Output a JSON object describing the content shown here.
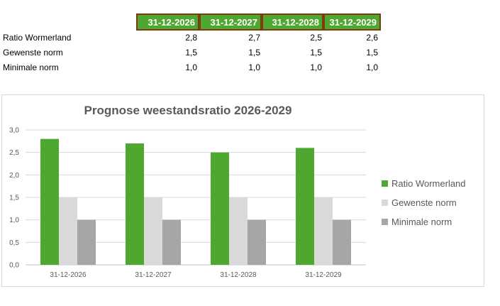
{
  "table": {
    "headers": [
      "31-12-2026",
      "31-12-2027",
      "31-12-2028",
      "31-12-2029"
    ],
    "rows": [
      {
        "label": "Ratio Wormerland",
        "values": [
          "2,8",
          "2,7",
          "2,5",
          "2,6"
        ]
      },
      {
        "label": "Gewenste norm",
        "values": [
          "1,5",
          "1,5",
          "1,5",
          "1,5"
        ]
      },
      {
        "label": "Minimale norm",
        "values": [
          "1,0",
          "1,0",
          "1,0",
          "1,0"
        ]
      }
    ]
  },
  "colors": {
    "header_fill": "#4ea72e",
    "header_border": "#7f3a0f",
    "ratio": "#4ea72e",
    "gewenste": "#d9d9d9",
    "minimale": "#a6a6a6",
    "gridline": "#d9d9d9"
  },
  "chart_data": {
    "type": "bar",
    "title": "Prognose weestandsratio  2026-2029",
    "categories": [
      "31-12-2026",
      "31-12-2027",
      "31-12-2028",
      "31-12-2029"
    ],
    "series": [
      {
        "name": "Ratio Wormerland",
        "values": [
          2.8,
          2.7,
          2.5,
          2.6
        ]
      },
      {
        "name": "Gewenste norm",
        "values": [
          1.5,
          1.5,
          1.5,
          1.5
        ]
      },
      {
        "name": "Minimale norm",
        "values": [
          1.0,
          1.0,
          1.0,
          1.0
        ]
      }
    ],
    "ylim": [
      0,
      3.0
    ],
    "yticks": [
      "0,0",
      "0,5",
      "1,0",
      "1,5",
      "2,0",
      "2,5",
      "3,0"
    ],
    "grid": true,
    "legend_position": "right"
  }
}
